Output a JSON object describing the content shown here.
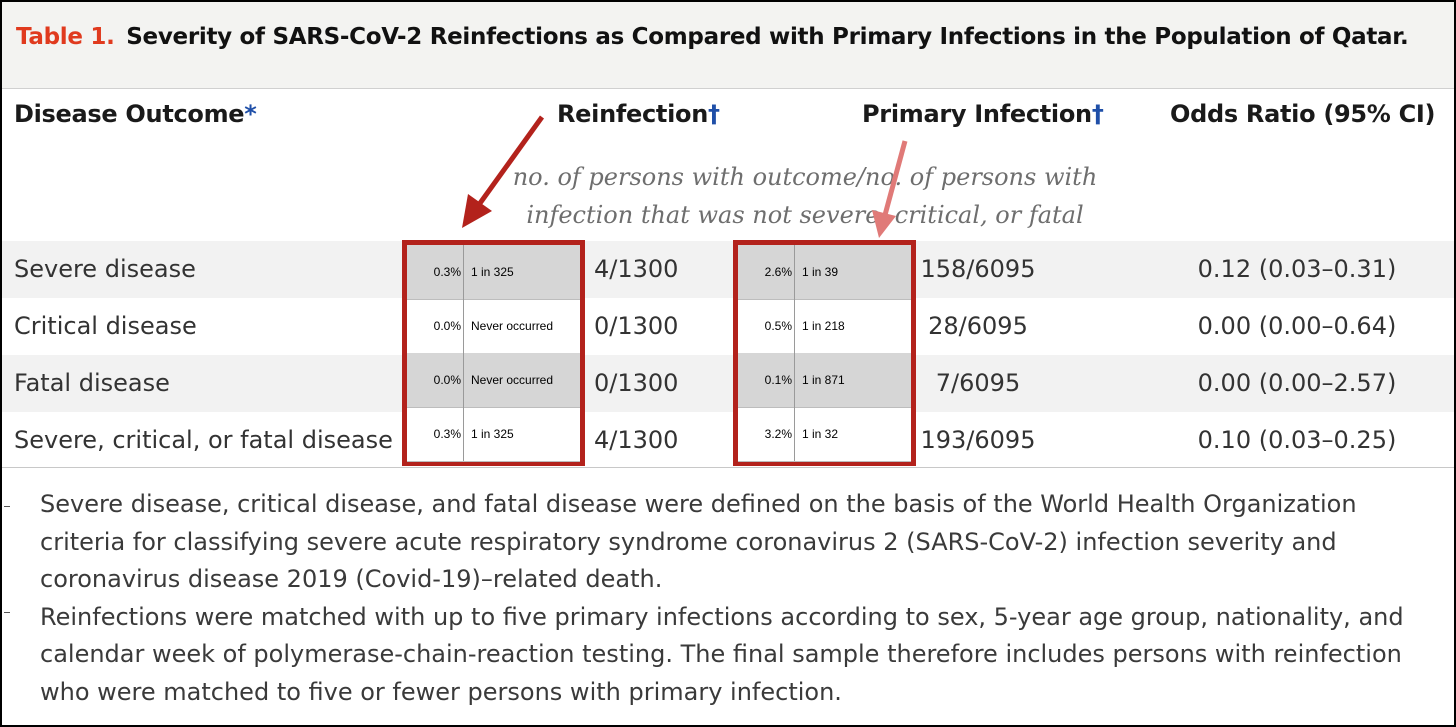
{
  "title": {
    "label": "Table 1.",
    "text": "Severity of SARS-CoV-2 Reinfections as Compared with Primary Infections in the Population of Qatar."
  },
  "headers": {
    "outcome": "Disease Outcome",
    "outcome_mark": "*",
    "reinfection": "Reinfection",
    "reinfection_mark": "†",
    "primary": "Primary Infection",
    "primary_mark": "†",
    "odds": "Odds Ratio (95% CI)"
  },
  "subheader": {
    "line1": "no. of persons with outcome/no. of persons with",
    "line2": "infection that was not severe, critical, or fatal"
  },
  "rows": [
    {
      "outcome": "Severe disease",
      "reinfection": "4/1300",
      "primary": "158/6095",
      "odds": "0.12 (0.03–0.31)"
    },
    {
      "outcome": "Critical disease",
      "reinfection": "0/1300",
      "primary": "28/6095",
      "odds": "0.00 (0.00–0.64)"
    },
    {
      "outcome": "Fatal disease",
      "reinfection": "0/1300",
      "primary": "7/6095",
      "odds": "0.00 (0.00–2.57)"
    },
    {
      "outcome": "Severe, critical, or fatal disease",
      "reinfection": "4/1300",
      "primary": "193/6095",
      "odds": "0.10 (0.03–0.25)"
    }
  ],
  "annotations": {
    "reinfection": [
      {
        "pct": "0.3%",
        "ratio": "1 in 325"
      },
      {
        "pct": "0.0%",
        "ratio": "Never occurred"
      },
      {
        "pct": "0.0%",
        "ratio": "Never occurred"
      },
      {
        "pct": "0.3%",
        "ratio": "1 in 325"
      }
    ],
    "primary": [
      {
        "pct": "2.6%",
        "ratio": "1 in 39"
      },
      {
        "pct": "0.5%",
        "ratio": "1 in 218"
      },
      {
        "pct": "0.1%",
        "ratio": "1 in 871"
      },
      {
        "pct": "3.2%",
        "ratio": "1 in 32"
      }
    ]
  },
  "colors": {
    "table_label": "#e03a1e",
    "dagger": "#1f4fa8",
    "annotation_box": "#b3221c",
    "arrow_dark": "#b3221c",
    "arrow_light": "#e07a78"
  },
  "footnotes": [
    "Severe disease, critical disease, and fatal disease were defined on the basis of the World Health Organization criteria for classifying severe acute respiratory syndrome coronavirus 2 (SARS-CoV-2) infection severity and coronavirus disease 2019 (Covid-19)–related death.",
    "Reinfections were matched with up to five primary infections according to sex, 5-year age group, nationality, and calendar week of polymerase-chain-reaction testing. The final sample therefore includes persons with reinfection who were matched to five or fewer persons with primary infection."
  ]
}
